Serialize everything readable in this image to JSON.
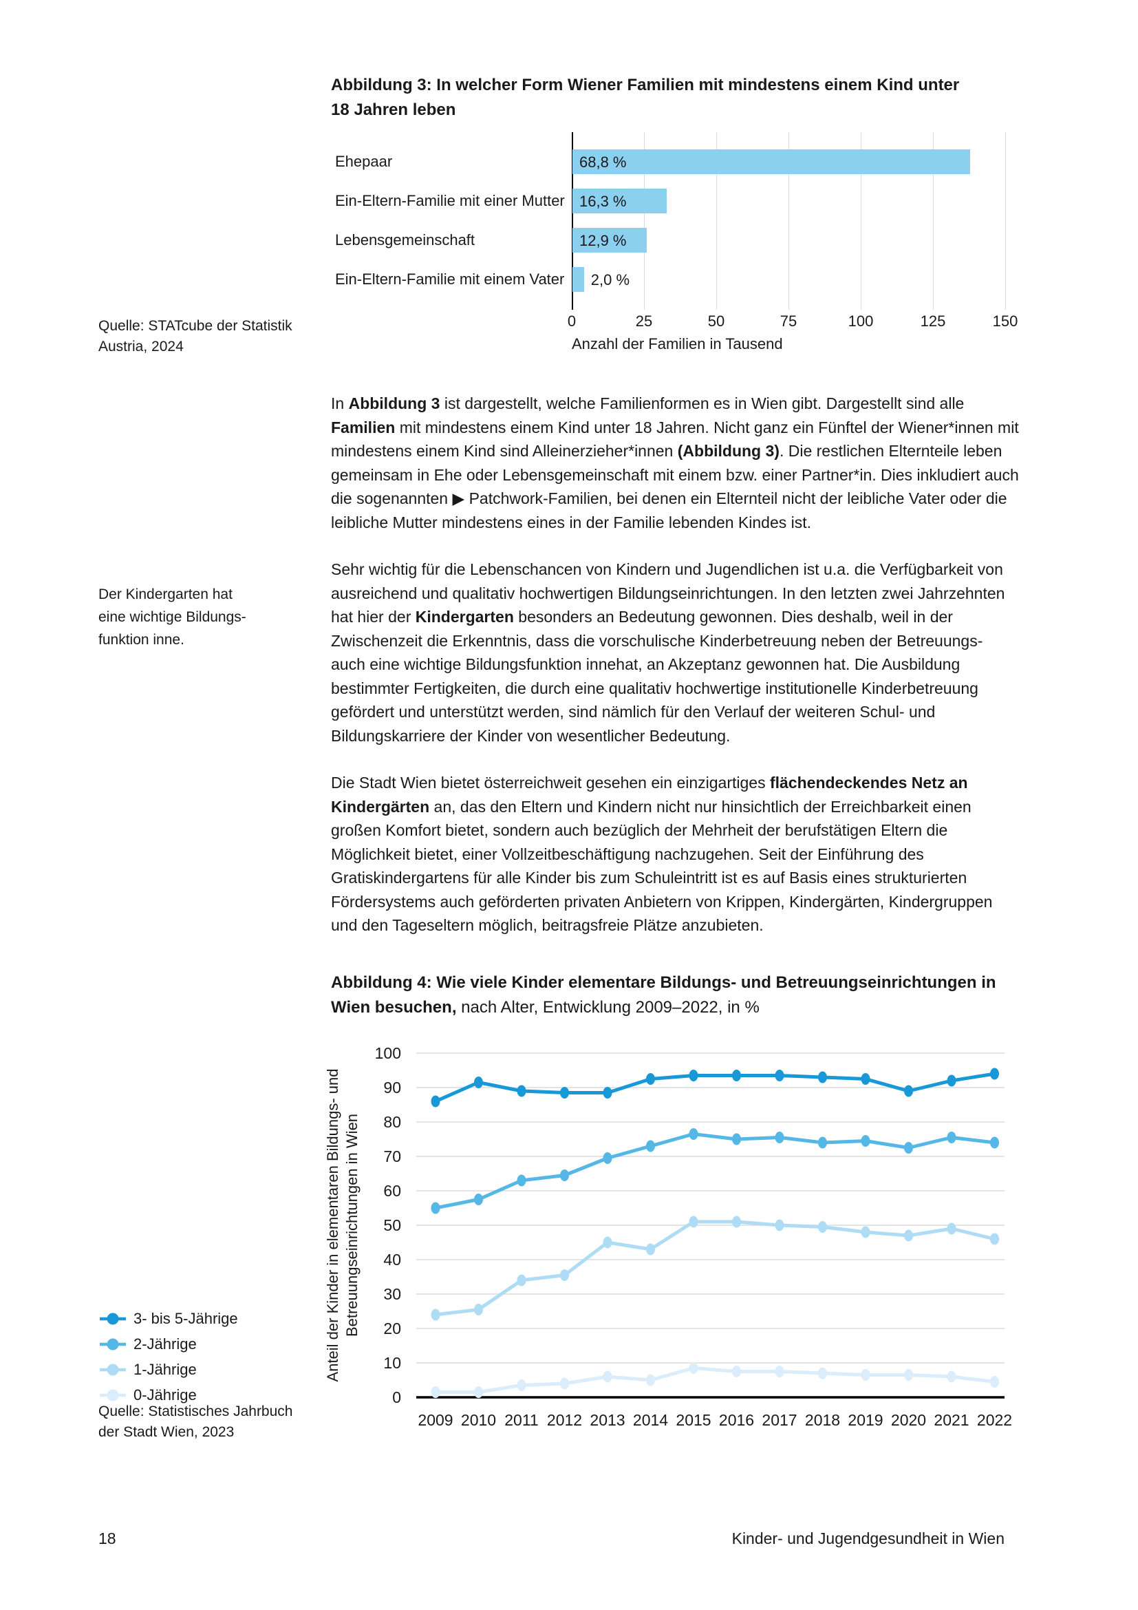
{
  "page": {
    "number": "18",
    "footer_right": "Kinder- und Jugendgesundheit in Wien"
  },
  "figure3": {
    "title_line1": "Abbildung 3: In welcher Form Wiener Familien mit mindestens einem Kind unter",
    "title_line2": "18 Jahren leben",
    "source_lines": [
      "Quelle: STATcube der Statistik",
      "Austria, 2024"
    ]
  },
  "figure4": {
    "title_bold1": "Abbildung 4: Wie viele Kinder elementare Bildungs- und Betreuungseinrichtungen in",
    "title_bold2": "Wien besuchen,",
    "title_normal": " nach Alter, Entwicklung 2009–2022, in %",
    "source_lines": [
      "Quelle: Statistisches Jahrbuch",
      "der Stadt Wien, 2023"
    ]
  },
  "sidenotes": {
    "kindergarten_lines": [
      "Der Kindergarten hat",
      "eine wichtige Bildungs-",
      "funktion inne."
    ]
  },
  "paragraphs": [
    [
      {
        "b": false,
        "t": "In "
      },
      {
        "b": true,
        "t": "Abbildung 3"
      },
      {
        "b": false,
        "t": " ist dargestellt, welche Familienformen es in Wien gibt. Dargestellt sind alle "
      },
      {
        "b": true,
        "t": "Familien"
      },
      {
        "b": false,
        "t": " mit mindestens einem Kind unter 18 Jahren. Nicht ganz ein Fünftel der Wiener*innen mit mindestens einem Kind sind Alleinerzieher*innen "
      },
      {
        "b": true,
        "t": "(Abbildung 3)"
      },
      {
        "b": false,
        "t": ". Die restlichen Elternteile leben gemeinsam in Ehe oder Lebensgemeinschaft mit einem bzw. einer Partner*in. Dies inkludiert auch die sogenannten ▶ Patchwork-Familien, bei denen ein Elternteil nicht der leibliche Vater oder die leibliche Mutter mindestens eines in der Familie lebenden Kindes ist."
      }
    ],
    [
      {
        "b": false,
        "t": "Sehr wichtig für die Lebenschancen von Kindern und Jugendlichen ist u.a. die Verfügbarkeit von ausreichend und qualitativ hochwertigen Bildungseinrichtungen. In den letzten zwei Jahrzehnten hat hier der "
      },
      {
        "b": true,
        "t": "Kindergarten"
      },
      {
        "b": false,
        "t": " besonders an Bedeutung gewonnen. Dies deshalb, weil in der Zwischenzeit die Erkenntnis, dass die vorschulische Kinderbetreuung neben der Betreuungs- auch eine wichtige Bildungsfunktion innehat, an Akzeptanz gewonnen hat. Die Ausbildung bestimmter Fertigkeiten, die durch eine qualitativ hochwertige institutionelle Kinderbetreuung gefördert und unterstützt werden, sind nämlich für den Verlauf der weiteren Schul- und Bildungskarriere der Kinder von wesentlicher Bedeutung."
      }
    ],
    [
      {
        "b": false,
        "t": "Die Stadt Wien bietet österreichweit gesehen ein einzigartiges "
      },
      {
        "b": true,
        "t": "flächendeckendes Netz an Kindergärten"
      },
      {
        "b": false,
        "t": " an, das den Eltern und Kindern nicht nur hinsichtlich der Erreichbarkeit einen großen Komfort bietet, sondern auch bezüglich der Mehrheit der berufstätigen Eltern die Möglichkeit bietet, einer Vollzeitbeschäftigung nachzugehen. Seit der Einführung des Gratiskindergartens für alle Kinder bis zum Schuleintritt ist es auf Basis eines strukturierten Fördersystems auch geförderten privaten Anbietern von Krippen, Kindergärten, Kindergruppen und den Tageseltern möglich, beitragsfreie Plätze anzubieten."
      }
    ]
  ],
  "chart_data": [
    {
      "type": "bar",
      "orientation": "horizontal",
      "title": "Abbildung 3: In welcher Form Wiener Familien mit mindestens einem Kind unter 18 Jahren leben",
      "categories": [
        "Ehepaar",
        "Ein-Eltern-Familie mit einer Mutter",
        "Lebensgemeinschaft",
        "Ein-Eltern-Familie mit einem Vater"
      ],
      "values_thousand": [
        137.6,
        32.6,
        25.8,
        4.0
      ],
      "percent_labels": [
        "68,8 %",
        "16,3 %",
        "12,9 %",
        "2,0 %"
      ],
      "xlabel": "Anzahl der Familien in Tausend",
      "xlim": [
        0,
        150
      ],
      "xticks": [
        0,
        25,
        50,
        75,
        100,
        125,
        150
      ],
      "bar_color": "#8BD0EF",
      "grid": true,
      "source": "Quelle: STATcube der Statistik Austria, 2024"
    },
    {
      "type": "line",
      "title": "Abbildung 4: Wie viele Kinder elementare Bildungs- und Betreuungseinrichtungen in Wien besuchen, nach Alter, Entwicklung 2009–2022, in %",
      "x": [
        2009,
        2010,
        2011,
        2012,
        2013,
        2014,
        2015,
        2016,
        2017,
        2018,
        2019,
        2020,
        2021,
        2022
      ],
      "series": [
        {
          "name": "3- bis 5-Jährige",
          "color": "#1898D6",
          "values": [
            86,
            91.5,
            89,
            88.5,
            88.5,
            92.5,
            93.5,
            93.5,
            93.5,
            93,
            92.5,
            89,
            92,
            94
          ]
        },
        {
          "name": "2-Jährige",
          "color": "#54B7E5",
          "values": [
            55,
            57.5,
            63,
            64.5,
            69.5,
            73,
            76.5,
            75,
            75.5,
            74,
            74.5,
            72.5,
            75.5,
            74
          ]
        },
        {
          "name": "1-Jährige",
          "color": "#AFDCF5",
          "values": [
            24,
            25.5,
            34,
            35.5,
            45,
            43,
            51,
            51,
            50,
            49.5,
            48,
            47,
            49,
            46
          ]
        },
        {
          "name": "0-Jährige",
          "color": "#DBEDFA",
          "values": [
            1.5,
            1.5,
            3.5,
            4,
            6,
            5,
            8.5,
            7.5,
            7.5,
            7,
            6.5,
            6.5,
            6,
            4.5
          ]
        }
      ],
      "ylabel": "Anteil der Kinder in elementaren Bildungs- und Betreuungseinrichtungen in Wien",
      "ylabel_lines": [
        "Anteil der Kinder in elementaren Bildungs- und",
        "Betreuungseinrichtungen in Wien"
      ],
      "ylim": [
        0,
        100
      ],
      "yticks": [
        0,
        10,
        20,
        30,
        40,
        50,
        60,
        70,
        80,
        90,
        100
      ],
      "grid": true,
      "legend_position": "left",
      "source": "Quelle: Statistisches Jahrbuch der Stadt Wien, 2023"
    }
  ]
}
